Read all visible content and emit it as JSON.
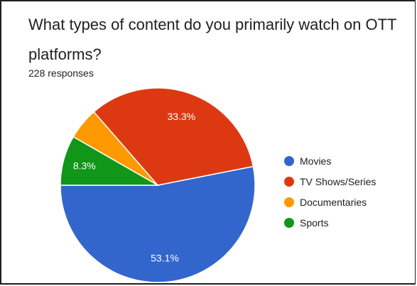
{
  "question": {
    "title": "What types of content do you primarily watch on OTT platforms?",
    "responses": "228 responses"
  },
  "chart_data": {
    "type": "pie",
    "labels": [
      "Movies",
      "TV Shows/Series",
      "Documentaries",
      "Sports"
    ],
    "values": [
      53.1,
      33.3,
      5.3,
      8.3
    ],
    "percent_labels": [
      "53.1%",
      "33.3%",
      "",
      "8.3%"
    ],
    "colors": [
      "#3366cc",
      "#dc3912",
      "#ff9900",
      "#109618"
    ],
    "legend_position": "right",
    "title": "What types of content do you primarily watch on OTT platforms?"
  }
}
